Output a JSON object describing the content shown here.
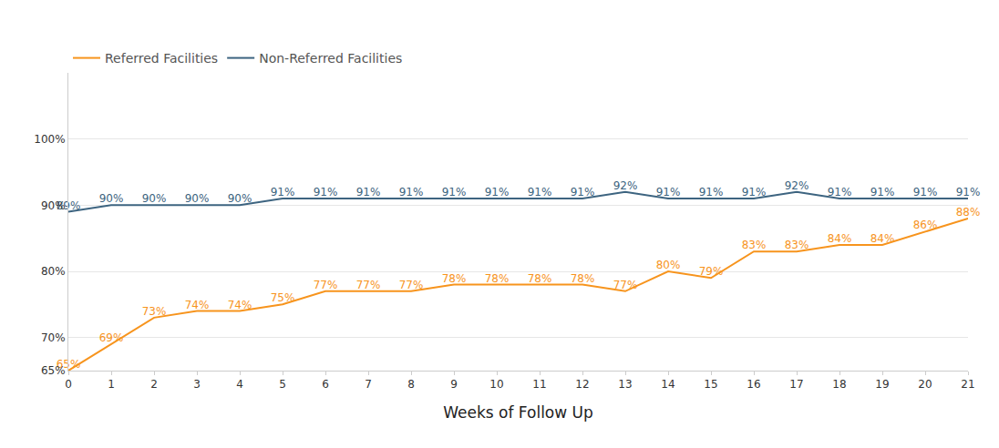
{
  "chart_data": {
    "type": "line",
    "x_label": "Weeks of Follow Up",
    "x": [
      0,
      1,
      2,
      3,
      4,
      5,
      6,
      7,
      8,
      9,
      10,
      11,
      12,
      13,
      14,
      15,
      16,
      17,
      18,
      19,
      20,
      21
    ],
    "xlim": [
      0,
      21
    ],
    "xticks": [
      0,
      1,
      2,
      3,
      4,
      5,
      6,
      7,
      8,
      9,
      10,
      11,
      12,
      13,
      14,
      15,
      16,
      17,
      18,
      19,
      20,
      21
    ],
    "ylim": [
      65,
      110
    ],
    "yticks": [
      {
        "value": 65,
        "label": "65%"
      },
      {
        "value": 70,
        "label": "70%"
      },
      {
        "value": 80,
        "label": "80%"
      },
      {
        "value": 90,
        "label": "90%"
      },
      {
        "value": 100,
        "label": "100%"
      }
    ],
    "grid": true,
    "legend": "top left",
    "data_labels": true,
    "series": [
      {
        "name": "Referred Facilities",
        "color": "#f7941d",
        "values": [
          65,
          69,
          73,
          74,
          74,
          75,
          77,
          77,
          77,
          78,
          78,
          78,
          78,
          77,
          80,
          79,
          83,
          83,
          84,
          84,
          86,
          88
        ],
        "value_labels": [
          "65%",
          "69%",
          "73%",
          "74%",
          "74%",
          "75%",
          "77%",
          "77%",
          "77%",
          "78%",
          "78%",
          "78%",
          "78%",
          "77%",
          "80%",
          "79%",
          "83%",
          "83%",
          "84%",
          "84%",
          "86%",
          "88%"
        ]
      },
      {
        "name": "Non-Referred Facilities",
        "color": "#3d6480",
        "values": [
          89,
          90,
          90,
          90,
          90,
          91,
          91,
          91,
          91,
          91,
          91,
          91,
          91,
          92,
          91,
          91,
          91,
          92,
          91,
          91,
          91,
          91
        ],
        "value_labels": [
          "89%",
          "90%",
          "90%",
          "90%",
          "90%",
          "91%",
          "91%",
          "91%",
          "91%",
          "91%",
          "91%",
          "91%",
          "91%",
          "92%",
          "91%",
          "91%",
          "91%",
          "92%",
          "91%",
          "91%",
          "91%",
          "91%"
        ]
      }
    ]
  }
}
